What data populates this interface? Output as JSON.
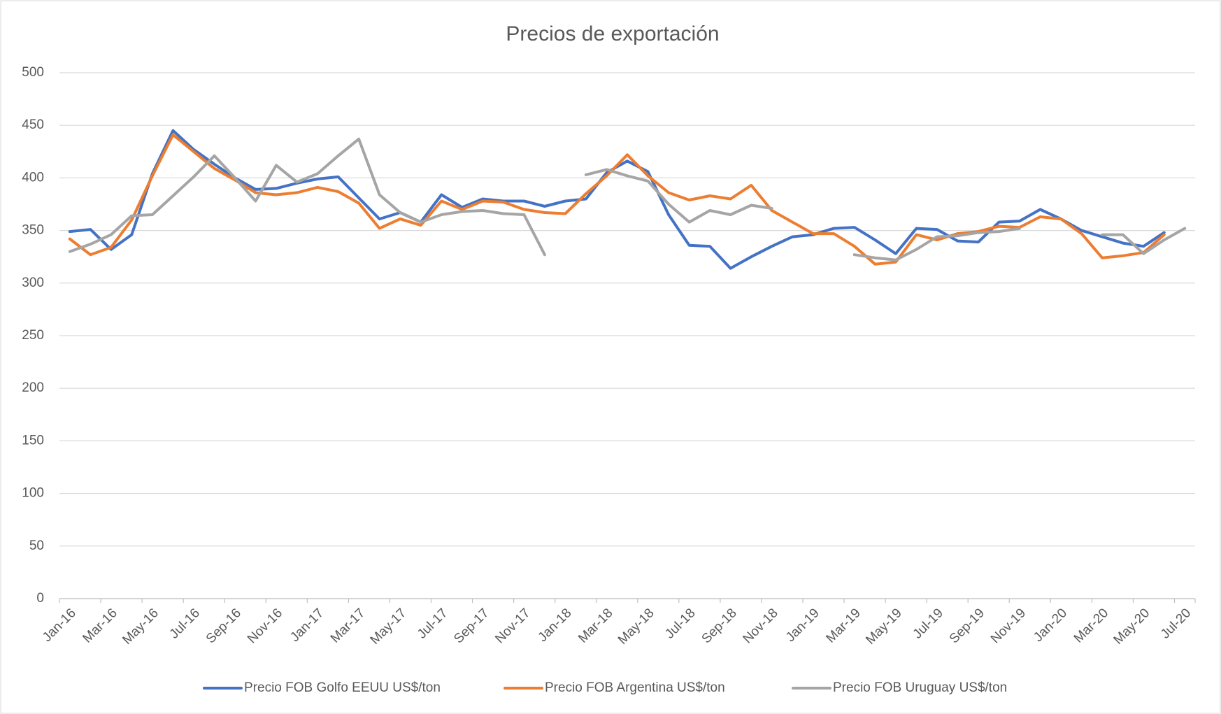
{
  "chart_data": {
    "type": "line",
    "title": "Precios de exportación",
    "categories": [
      "Jan-16",
      null,
      "Mar-16",
      null,
      "May-16",
      null,
      "Jul-16",
      null,
      "Sep-16",
      null,
      "Nov-16",
      null,
      "Jan-17",
      null,
      "Mar-17",
      null,
      "May-17",
      null,
      "Jul-17",
      null,
      "Sep-17",
      null,
      "Nov-17",
      null,
      "Jan-18",
      null,
      "Mar-18",
      null,
      "May-18",
      null,
      "Jul-18",
      null,
      "Sep-18",
      null,
      "Nov-18",
      null,
      "Jan-19",
      null,
      "Mar-19",
      null,
      "May-19",
      null,
      "Jul-19",
      null,
      "Sep-19",
      null,
      "Nov-19",
      null,
      "Jan-20",
      null,
      "Mar-20",
      null,
      "May-20",
      null,
      "Jul-20"
    ],
    "series": [
      {
        "name": "Precio FOB Golfo EEUU US$/ton",
        "color": "#4472c4",
        "values": [
          349,
          351,
          332,
          346,
          404,
          445,
          427,
          413,
          400,
          389,
          390,
          395,
          399,
          401,
          381,
          361,
          367,
          358,
          384,
          372,
          380,
          378,
          378,
          373,
          378,
          380,
          405,
          416,
          406,
          365,
          336,
          335,
          314,
          325,
          335,
          344,
          346,
          352,
          353,
          341,
          328,
          352,
          351,
          340,
          339,
          358,
          359,
          370,
          361,
          350,
          344,
          338,
          335,
          348,
          null
        ]
      },
      {
        "name": "Precio FOB Argentina US$/ton",
        "color": "#ed7d31",
        "values": [
          342,
          327,
          334,
          360,
          402,
          441,
          425,
          409,
          398,
          386,
          384,
          386,
          391,
          387,
          376,
          352,
          361,
          355,
          378,
          370,
          378,
          377,
          370,
          367,
          366,
          385,
          402,
          422,
          402,
          386,
          379,
          383,
          380,
          393,
          369,
          358,
          347,
          347,
          335,
          318,
          320,
          346,
          341,
          347,
          349,
          354,
          353,
          363,
          361,
          347,
          324,
          326,
          329,
          346,
          null
        ]
      },
      {
        "name": "Precio FOB Uruguay US$/ton",
        "color": "#a5a5a5",
        "values": [
          330,
          337,
          346,
          364,
          365,
          383,
          401,
          421,
          400,
          378,
          412,
          396,
          404,
          421,
          437,
          384,
          367,
          358,
          365,
          368,
          369,
          366,
          365,
          327,
          null,
          403,
          408,
          402,
          397,
          375,
          358,
          369,
          365,
          374,
          371,
          null,
          null,
          null,
          327,
          324,
          322,
          332,
          344,
          345,
          348,
          349,
          352,
          null,
          null,
          null,
          346,
          346,
          328,
          341,
          352
        ]
      }
    ],
    "ylim": [
      0,
      500
    ],
    "yticks": [
      0,
      50,
      100,
      150,
      200,
      250,
      300,
      350,
      400,
      450,
      500
    ],
    "grid": true,
    "legend": "bottom"
  }
}
